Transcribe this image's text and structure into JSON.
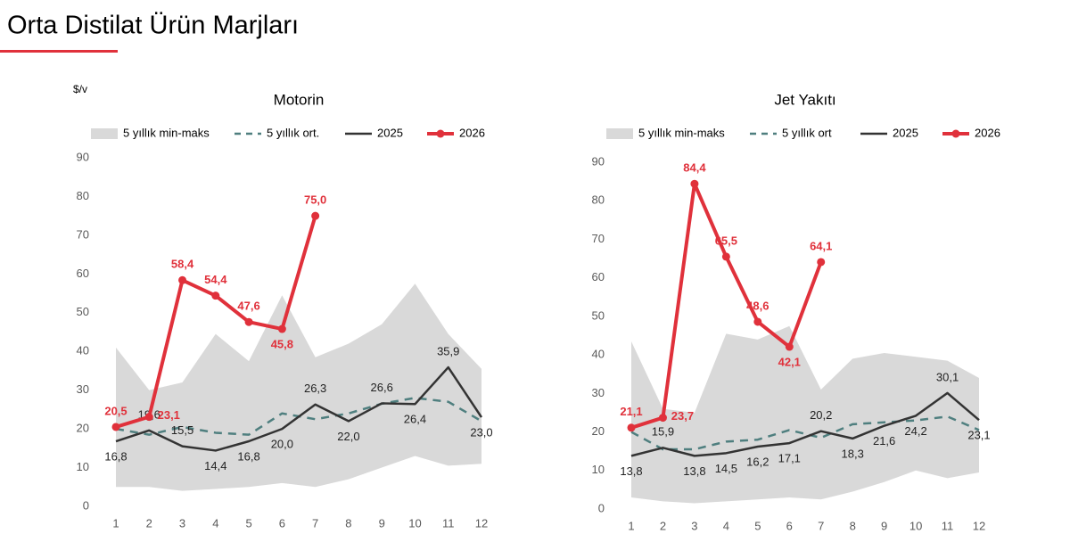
{
  "title": "Orta Distilat Ürün Marjları",
  "chart_data": [
    {
      "type": "line",
      "title": "Motorin",
      "y_label": "$/v",
      "categories": [
        1,
        2,
        3,
        4,
        5,
        6,
        7,
        8,
        9,
        10,
        11,
        12
      ],
      "ylim": [
        0,
        90
      ],
      "yticks": [
        0,
        10,
        20,
        30,
        40,
        50,
        60,
        70,
        80,
        90
      ],
      "grid": false,
      "series": [
        {
          "name": "5 yıllık min-maks",
          "type": "band",
          "color": "#d9d9d9",
          "high": [
            41,
            30,
            32,
            44.5,
            37.5,
            54.5,
            38.5,
            42,
            47,
            57.5,
            44.5,
            35.5
          ],
          "low": [
            5,
            5,
            4,
            4.5,
            5,
            6,
            5,
            7,
            10,
            13,
            10.5,
            11
          ]
        },
        {
          "name": "5 yıllık ort.",
          "type": "line",
          "dash": true,
          "color": "#4f7f7f",
          "values": [
            20,
            18.5,
            20.5,
            19,
            18.5,
            24,
            22.5,
            24,
            26.5,
            28,
            27,
            22
          ]
        },
        {
          "name": "2025",
          "type": "line",
          "color": "#333333",
          "values": [
            16.8,
            19.6,
            15.5,
            14.4,
            16.8,
            20.0,
            26.3,
            22.0,
            26.6,
            26.4,
            35.9,
            23.0
          ],
          "value_labels": [
            "16,8",
            "19,6",
            "15,5",
            "14,4",
            "16,8",
            "20,0",
            "26,3",
            "22,0",
            "26,6",
            "26,4",
            "35,9",
            "23,0"
          ]
        },
        {
          "name": "2026",
          "type": "line",
          "markers": true,
          "color": "#e0313b",
          "values": [
            20.5,
            23.1,
            58.4,
            54.4,
            47.6,
            45.8,
            75.0,
            null,
            null,
            null,
            null,
            null
          ],
          "value_labels": [
            "20,5",
            "23,1",
            "58,4",
            "54,4",
            "47,6",
            "45,8",
            "75,0",
            null,
            null,
            null,
            null,
            null
          ]
        }
      ]
    },
    {
      "type": "line",
      "title": "Jet Yakıtı",
      "categories": [
        1,
        2,
        3,
        4,
        5,
        6,
        7,
        8,
        9,
        10,
        11,
        12
      ],
      "ylim": [
        0,
        90
      ],
      "yticks": [
        0,
        10,
        20,
        30,
        40,
        50,
        60,
        70,
        80,
        90
      ],
      "grid": false,
      "series": [
        {
          "name": "5 yıllık min-maks",
          "type": "band",
          "color": "#d9d9d9",
          "high": [
            43.5,
            26,
            25,
            45.5,
            44,
            47.5,
            31,
            39,
            40.5,
            39.5,
            38.5,
            34
          ],
          "low": [
            3,
            2,
            1.5,
            2,
            2.5,
            3,
            2.5,
            4.5,
            7,
            10,
            8,
            9.5
          ]
        },
        {
          "name": "5 yıllık ort",
          "type": "line",
          "dash": true,
          "color": "#4f7f7f",
          "values": [
            20,
            15.5,
            15.5,
            17.5,
            18,
            20.5,
            18.5,
            22,
            22.5,
            23,
            24,
            20.5
          ]
        },
        {
          "name": "2025",
          "type": "line",
          "color": "#333333",
          "values": [
            13.8,
            15.9,
            13.8,
            14.5,
            16.2,
            17.1,
            20.2,
            18.3,
            21.6,
            24.2,
            30.1,
            23.1
          ],
          "value_labels": [
            "13,8",
            "15,9",
            "13,8",
            "14,5",
            "16,2",
            "17,1",
            "20,2",
            "18,3",
            "21,6",
            "24,2",
            "30,1",
            "23,1"
          ]
        },
        {
          "name": "2026",
          "type": "line",
          "markers": true,
          "color": "#e0313b",
          "values": [
            21.1,
            23.7,
            84.4,
            65.5,
            48.6,
            42.1,
            64.1,
            null,
            null,
            null,
            null,
            null
          ],
          "value_labels": [
            "21,1",
            "23,7",
            "84,4",
            "65,5",
            "48,6",
            "42,1",
            "64,1",
            null,
            null,
            null,
            null,
            null
          ]
        }
      ]
    }
  ]
}
